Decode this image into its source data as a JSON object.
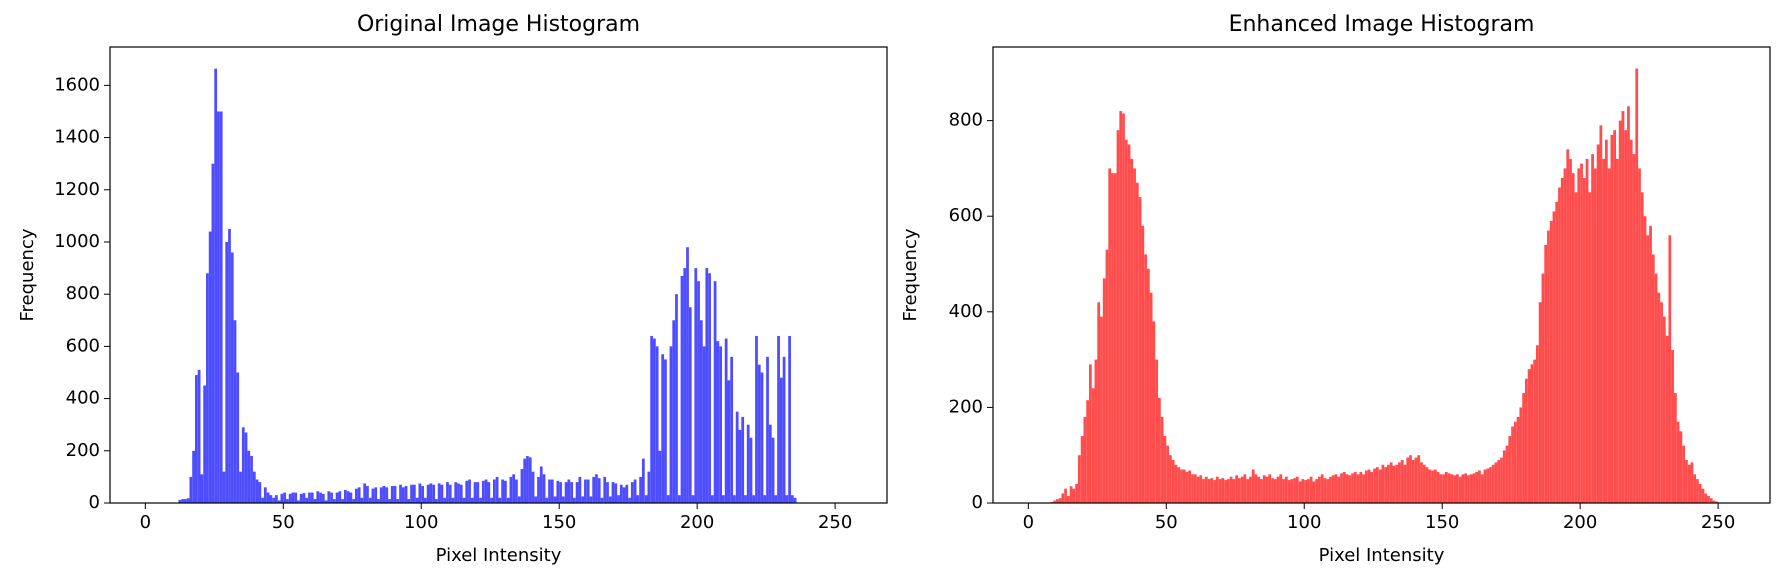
{
  "chart_data": [
    {
      "type": "histogram",
      "title": "Original Image Histogram",
      "xlabel": "Pixel Intensity",
      "ylabel": "Frequency",
      "color": "#4d4dff",
      "xlim": [
        -12.8,
        268.8
      ],
      "ylim": [
        0,
        1747
      ],
      "xticks": [
        0,
        50,
        100,
        150,
        200,
        250
      ],
      "yticks": [
        0,
        200,
        400,
        600,
        800,
        1000,
        1200,
        1400,
        1600
      ],
      "bins": [
        0,
        1,
        2,
        3,
        4,
        5,
        6,
        7,
        8,
        9,
        10,
        11,
        12,
        13,
        14,
        15,
        16,
        17,
        18,
        19,
        20,
        21,
        22,
        23,
        24,
        25,
        26,
        27,
        28,
        29,
        30,
        31,
        32,
        33,
        34,
        35,
        36,
        37,
        38,
        39,
        40,
        41,
        42,
        43,
        44,
        45,
        46,
        47,
        48,
        49,
        50,
        51,
        52,
        53,
        54,
        55,
        56,
        57,
        58,
        59,
        60,
        61,
        62,
        63,
        64,
        65,
        66,
        67,
        68,
        69,
        70,
        71,
        72,
        73,
        74,
        75,
        76,
        77,
        78,
        79,
        80,
        81,
        82,
        83,
        84,
        85,
        86,
        87,
        88,
        89,
        90,
        91,
        92,
        93,
        94,
        95,
        96,
        97,
        98,
        99,
        100,
        101,
        102,
        103,
        104,
        105,
        106,
        107,
        108,
        109,
        110,
        111,
        112,
        113,
        114,
        115,
        116,
        117,
        118,
        119,
        120,
        121,
        122,
        123,
        124,
        125,
        126,
        127,
        128,
        129,
        130,
        131,
        132,
        133,
        134,
        135,
        136,
        137,
        138,
        139,
        140,
        141,
        142,
        143,
        144,
        145,
        146,
        147,
        148,
        149,
        150,
        151,
        152,
        153,
        154,
        155,
        156,
        157,
        158,
        159,
        160,
        161,
        162,
        163,
        164,
        165,
        166,
        167,
        168,
        169,
        170,
        171,
        172,
        173,
        174,
        175,
        176,
        177,
        178,
        179,
        180,
        181,
        182,
        183,
        184,
        185,
        186,
        187,
        188,
        189,
        190,
        191,
        192,
        193,
        194,
        195,
        196,
        197,
        198,
        199,
        200,
        201,
        202,
        203,
        204,
        205,
        206,
        207,
        208,
        209,
        210,
        211,
        212,
        213,
        214,
        215,
        216,
        217,
        218,
        219,
        220,
        221,
        222,
        223,
        224,
        225,
        226,
        227,
        228,
        229,
        230,
        231,
        232,
        233,
        234,
        235,
        236,
        237,
        238,
        239,
        240,
        241,
        242,
        243,
        244,
        245,
        246,
        247,
        248,
        249,
        250,
        251,
        252,
        253,
        254,
        255,
        256
      ],
      "counts": [
        0,
        0,
        0,
        0,
        0,
        0,
        0,
        0,
        0,
        0,
        0,
        0,
        12,
        15,
        15,
        18,
        100,
        200,
        490,
        510,
        110,
        450,
        880,
        1040,
        1300,
        1664,
        1500,
        1500,
        120,
        1000,
        1050,
        960,
        700,
        500,
        120,
        290,
        270,
        200,
        180,
        120,
        90,
        80,
        20,
        60,
        40,
        30,
        20,
        30,
        10,
        35,
        40,
        15,
        35,
        40,
        40,
        10,
        35,
        38,
        20,
        40,
        40,
        15,
        45,
        40,
        35,
        10,
        45,
        40,
        15,
        40,
        45,
        15,
        50,
        45,
        40,
        15,
        55,
        60,
        20,
        75,
        65,
        20,
        55,
        60,
        15,
        60,
        65,
        60,
        15,
        65,
        65,
        15,
        70,
        60,
        65,
        15,
        70,
        70,
        20,
        75,
        65,
        20,
        70,
        75,
        70,
        15,
        75,
        70,
        20,
        80,
        70,
        20,
        80,
        75,
        70,
        20,
        85,
        90,
        20,
        80,
        80,
        20,
        85,
        90,
        80,
        20,
        90,
        100,
        20,
        90,
        85,
        20,
        100,
        110,
        90,
        25,
        130,
        170,
        180,
        175,
        120,
        25,
        100,
        140,
        110,
        20,
        90,
        90,
        25,
        85,
        80,
        25,
        80,
        90,
        80,
        20,
        80,
        100,
        25,
        90,
        90,
        25,
        100,
        110,
        95,
        20,
        100,
        80,
        25,
        80,
        75,
        30,
        70,
        60,
        70,
        20,
        80,
        90,
        30,
        100,
        170,
        30,
        120,
        640,
        630,
        600,
        200,
        570,
        550,
        30,
        600,
        700,
        800,
        30,
        870,
        900,
        980,
        750,
        30,
        900,
        850,
        700,
        600,
        900,
        880,
        30,
        850,
        620,
        600,
        30,
        630,
        470,
        560,
        30,
        350,
        280,
        330,
        30,
        300,
        250,
        30,
        640,
        530,
        500,
        30,
        560,
        300,
        250,
        30,
        640,
        480,
        560,
        30,
        640,
        30,
        20,
        0,
        0,
        0,
        0,
        0,
        0,
        0,
        0,
        0,
        0,
        0,
        0,
        0,
        0,
        0,
        0,
        0,
        0,
        0,
        0
      ]
    },
    {
      "type": "histogram",
      "title": "Enhanced Image Histogram",
      "xlabel": "Pixel Intensity",
      "ylabel": "Frequency",
      "color": "#ff4d4d",
      "xlim": [
        -12.8,
        268.8
      ],
      "ylim": [
        0,
        954
      ],
      "xticks": [
        0,
        50,
        100,
        150,
        200,
        250
      ],
      "yticks": [
        0,
        200,
        400,
        600,
        800
      ],
      "bins": [
        0,
        1,
        2,
        3,
        4,
        5,
        6,
        7,
        8,
        9,
        10,
        11,
        12,
        13,
        14,
        15,
        16,
        17,
        18,
        19,
        20,
        21,
        22,
        23,
        24,
        25,
        26,
        27,
        28,
        29,
        30,
        31,
        32,
        33,
        34,
        35,
        36,
        37,
        38,
        39,
        40,
        41,
        42,
        43,
        44,
        45,
        46,
        47,
        48,
        49,
        50,
        51,
        52,
        53,
        54,
        55,
        56,
        57,
        58,
        59,
        60,
        61,
        62,
        63,
        64,
        65,
        66,
        67,
        68,
        69,
        70,
        71,
        72,
        73,
        74,
        75,
        76,
        77,
        78,
        79,
        80,
        81,
        82,
        83,
        84,
        85,
        86,
        87,
        88,
        89,
        90,
        91,
        92,
        93,
        94,
        95,
        96,
        97,
        98,
        99,
        100,
        101,
        102,
        103,
        104,
        105,
        106,
        107,
        108,
        109,
        110,
        111,
        112,
        113,
        114,
        115,
        116,
        117,
        118,
        119,
        120,
        121,
        122,
        123,
        124,
        125,
        126,
        127,
        128,
        129,
        130,
        131,
        132,
        133,
        134,
        135,
        136,
        137,
        138,
        139,
        140,
        141,
        142,
        143,
        144,
        145,
        146,
        147,
        148,
        149,
        150,
        151,
        152,
        153,
        154,
        155,
        156,
        157,
        158,
        159,
        160,
        161,
        162,
        163,
        164,
        165,
        166,
        167,
        168,
        169,
        170,
        171,
        172,
        173,
        174,
        175,
        176,
        177,
        178,
        179,
        180,
        181,
        182,
        183,
        184,
        185,
        186,
        187,
        188,
        189,
        190,
        191,
        192,
        193,
        194,
        195,
        196,
        197,
        198,
        199,
        200,
        201,
        202,
        203,
        204,
        205,
        206,
        207,
        208,
        209,
        210,
        211,
        212,
        213,
        214,
        215,
        216,
        217,
        218,
        219,
        220,
        221,
        222,
        223,
        224,
        225,
        226,
        227,
        228,
        229,
        230,
        231,
        232,
        233,
        234,
        235,
        236,
        237,
        238,
        239,
        240,
        241,
        242,
        243,
        244,
        245,
        246,
        247,
        248,
        249,
        250,
        251,
        252,
        253,
        254,
        255,
        256
      ],
      "counts": [
        0,
        0,
        0,
        0,
        0,
        0,
        0,
        0,
        2,
        5,
        8,
        10,
        20,
        30,
        15,
        35,
        30,
        40,
        100,
        140,
        180,
        215,
        290,
        240,
        300,
        420,
        390,
        470,
        530,
        700,
        690,
        690,
        780,
        820,
        815,
        760,
        750,
        720,
        700,
        670,
        640,
        580,
        520,
        490,
        440,
        380,
        300,
        220,
        180,
        140,
        120,
        100,
        90,
        80,
        75,
        70,
        70,
        65,
        68,
        60,
        60,
        55,
        58,
        50,
        55,
        50,
        52,
        48,
        55,
        50,
        52,
        48,
        50,
        55,
        50,
        58,
        52,
        55,
        60,
        50,
        55,
        70,
        60,
        55,
        50,
        58,
        55,
        60,
        52,
        50,
        55,
        60,
        50,
        55,
        48,
        50,
        52,
        55,
        45,
        50,
        48,
        50,
        55,
        45,
        50,
        55,
        60,
        52,
        50,
        55,
        58,
        60,
        55,
        62,
        65,
        60,
        58,
        62,
        65,
        60,
        65,
        60,
        68,
        70,
        65,
        72,
        75,
        70,
        80,
        75,
        80,
        85,
        78,
        80,
        85,
        90,
        80,
        95,
        100,
        90,
        95,
        100,
        85,
        80,
        75,
        70,
        68,
        70,
        65,
        60,
        60,
        65,
        62,
        60,
        58,
        60,
        55,
        60,
        62,
        58,
        60,
        62,
        65,
        68,
        60,
        70,
        72,
        75,
        80,
        85,
        90,
        95,
        110,
        120,
        140,
        160,
        170,
        180,
        200,
        230,
        260,
        280,
        290,
        300,
        330,
        420,
        480,
        540,
        570,
        590,
        610,
        630,
        660,
        680,
        700,
        740,
        720,
        690,
        650,
        700,
        710,
        680,
        720,
        650,
        730,
        700,
        750,
        790,
        720,
        760,
        700,
        770,
        780,
        720,
        800,
        820,
        780,
        830,
        760,
        730,
        909,
        700,
        650,
        600,
        560,
        580,
        520,
        480,
        440,
        420,
        390,
        350,
        560,
        320,
        230,
        170,
        150,
        120,
        90,
        80,
        85,
        60,
        50,
        40,
        30,
        20,
        15,
        10,
        5,
        3,
        0,
        0,
        0,
        0,
        0,
        0
      ]
    }
  ]
}
